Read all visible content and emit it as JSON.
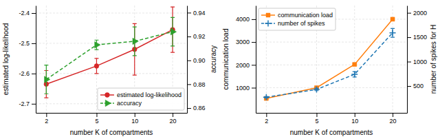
{
  "chart_data": [
    {
      "type": "line",
      "x": [
        2,
        5,
        10,
        20
      ],
      "log": "x",
      "xlim": [
        1.65,
        26
      ],
      "xticks": [
        2,
        5,
        10,
        20
      ],
      "ylim": [
        -2.73,
        -2.375
      ],
      "yticks": [
        -2.7,
        -2.6,
        -2.5,
        -2.4
      ],
      "y2lim": [
        0.856,
        0.946
      ],
      "y2ticks": [
        0.86,
        0.88,
        {
          "value": 0.9,
          "label": "0.90"
        },
        0.92,
        0.94
      ],
      "x_label": "number K of compartments",
      "y_label": "estimated log-likelihood",
      "y2_label": "accuracy",
      "grid": true,
      "legend": "lower right",
      "series": [
        {
          "name": "estimated log-likelihood",
          "color": "#d62728",
          "values": [
            -2.635,
            -2.575,
            -2.52,
            -2.455
          ],
          "error": [
            0.045,
            0.025,
            0.085,
            0.075
          ],
          "marker": "circle",
          "line_style": "solid"
        },
        {
          "name": "accuracy",
          "color": "#2ca02c",
          "axis": "y2",
          "values": [
            0.884,
            0.913,
            0.916,
            0.924
          ],
          "error": [
            0.012,
            0.004,
            0.012,
            0.012
          ],
          "marker": "triangle-right",
          "line_style": "dashed"
        }
      ]
    },
    {
      "type": "line",
      "x": [
        2,
        5,
        10,
        20
      ],
      "log": "x",
      "xlim": [
        1.65,
        26
      ],
      "xticks": [
        2,
        5,
        10,
        20
      ],
      "ylim": [
        -100,
        4600
      ],
      "yticks": [
        1000,
        2000,
        3000,
        4000
      ],
      "y2lim": [
        -50,
        2150
      ],
      "y2ticks": [
        500,
        1000,
        1500,
        2000
      ],
      "x_label": "number K of compartments",
      "y_label": "communication load",
      "y2_label": "number of spikes for H",
      "grid": true,
      "legend": "upper left",
      "series": [
        {
          "name": "communication load",
          "color": "#ff7f0e",
          "values": [
            530,
            1000,
            2020,
            4000
          ],
          "error": [
            20,
            20,
            30,
            30
          ],
          "marker": "square",
          "line_style": "solid"
        },
        {
          "name": "number of spikes",
          "color": "#1f77b4",
          "axis": "y2",
          "values": [
            270,
            430,
            740,
            1590
          ],
          "error": [
            15,
            25,
            55,
            90
          ],
          "marker": "plus",
          "line_style": "dashed"
        }
      ]
    }
  ]
}
